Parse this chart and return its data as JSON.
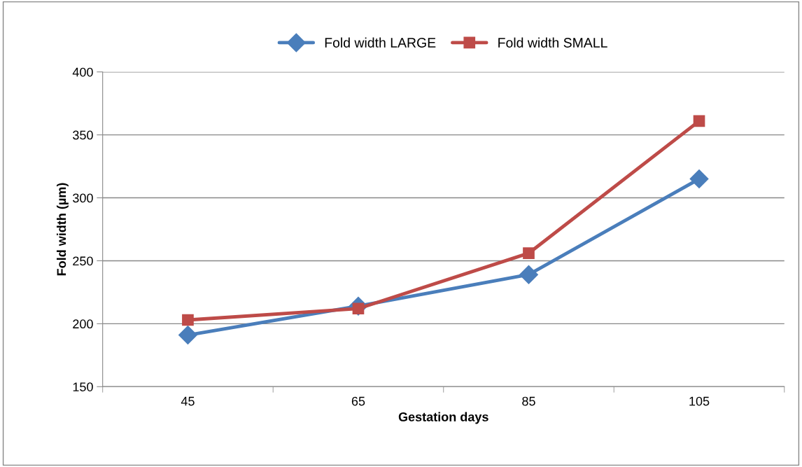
{
  "chart_data": {
    "type": "line",
    "xlabel": "Gestation days",
    "ylabel": "Fold width (µm)",
    "categories": [
      "45",
      "65",
      "85",
      "105"
    ],
    "series": [
      {
        "name": "Fold width LARGE",
        "color": "#4a7ebb",
        "marker": "diamond",
        "values": [
          191,
          214,
          239,
          315
        ]
      },
      {
        "name": "Fold width SMALL",
        "color": "#be4b48",
        "marker": "square",
        "values": [
          203,
          212,
          256,
          361
        ]
      }
    ],
    "ylim": [
      150,
      400
    ],
    "yticks": [
      150,
      200,
      250,
      300,
      350,
      400
    ],
    "grid": "y",
    "legend": "top",
    "line_style": "solid"
  }
}
